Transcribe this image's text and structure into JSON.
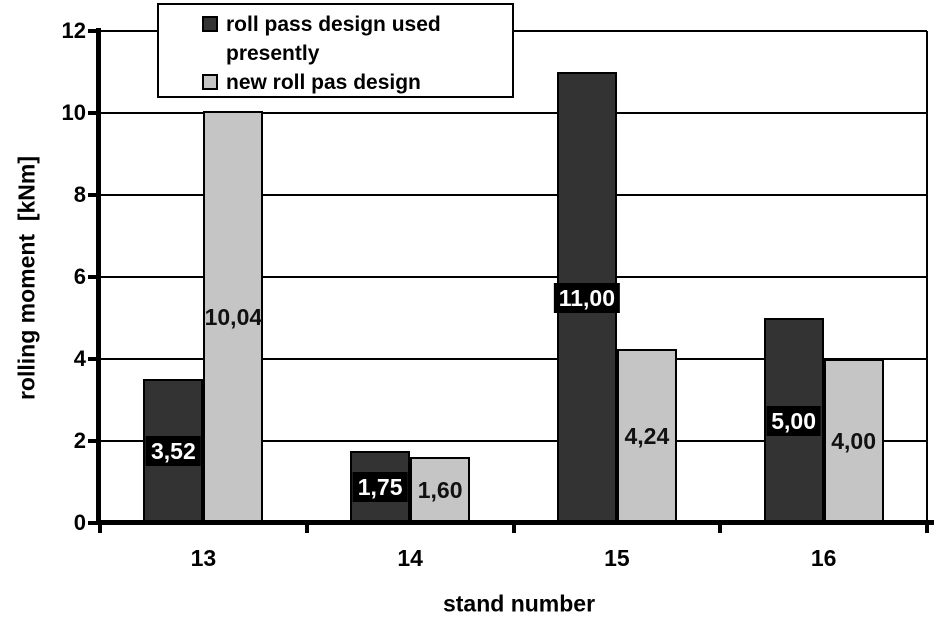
{
  "chart_data": {
    "type": "bar",
    "categories": [
      "13",
      "14",
      "15",
      "16"
    ],
    "series": [
      {
        "name": "roll pass design used presently",
        "values": [
          3.52,
          1.75,
          11.0,
          5.0
        ],
        "value_labels": [
          "3,52",
          "1,75",
          "11,00",
          "5,00"
        ],
        "color": "#333333",
        "label_text_color": "#ffffff",
        "label_bg_color": "#000000"
      },
      {
        "name": "new roll pas design",
        "values": [
          10.04,
          1.6,
          4.24,
          4.0
        ],
        "value_labels": [
          "10,04",
          "1,60",
          "4,24",
          "4,00"
        ],
        "color": "#c5c5c5",
        "label_text_color": "#111111",
        "label_bg_color": null
      }
    ],
    "xlabel": "stand number",
    "ylabel": "rolling moment  [kNm]",
    "ylim": [
      0,
      12
    ],
    "ytick_step": 2,
    "yticks": [
      "0",
      "2",
      "4",
      "6",
      "8",
      "10",
      "12"
    ],
    "grid": true,
    "legend_position": "top-left",
    "axis_color": "#000000",
    "plot_background": "#ffffff"
  }
}
